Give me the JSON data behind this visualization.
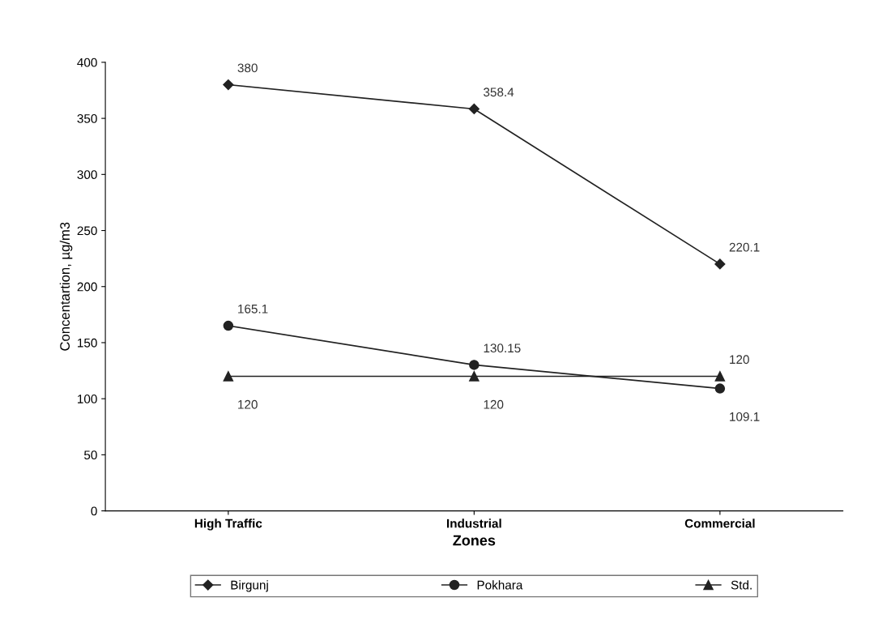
{
  "chart_data": {
    "type": "line",
    "xlabel": "Zones",
    "ylabel": "Concentartion, µg/m3",
    "categories": [
      "High Traffic",
      "Industrial",
      "Commercial"
    ],
    "series": [
      {
        "name": "Birgunj",
        "color": "#222222",
        "values": [
          380,
          358.4,
          220.1
        ],
        "marker": "diamond"
      },
      {
        "name": "Pokhara",
        "color": "#222222",
        "values": [
          165.1,
          130.15,
          109.1
        ],
        "marker": "circle"
      },
      {
        "name": "Std.",
        "color": "#222222",
        "values": [
          120,
          120,
          120
        ],
        "marker": "triangle"
      }
    ],
    "ylim": [
      0,
      400
    ],
    "yticks": [
      0,
      50,
      100,
      150,
      200,
      250,
      300,
      350,
      400
    ],
    "data_labels": true,
    "grid": false,
    "legend": "bottom",
    "line_style": "solid"
  }
}
